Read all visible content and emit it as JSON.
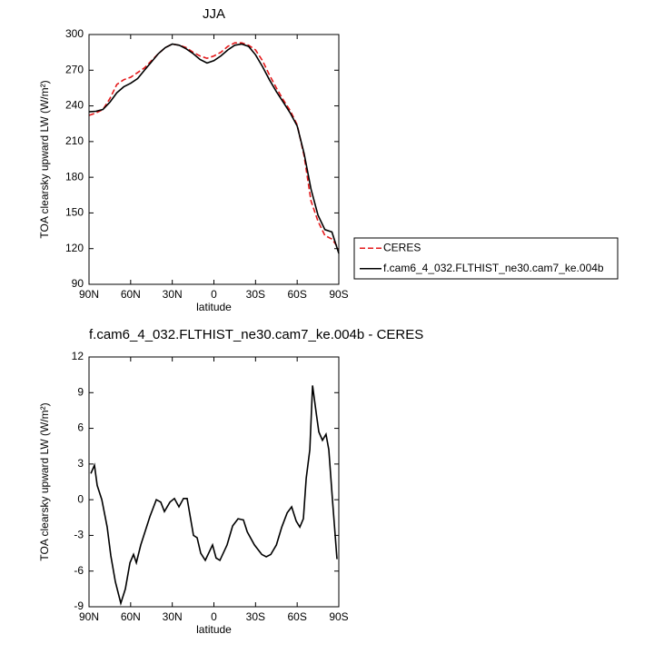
{
  "chart_data": [
    {
      "type": "line",
      "title": "JJA",
      "xlabel": "latitude",
      "ylabel": "TOA clearsky upward LW (W/m²)",
      "x": [
        90,
        85,
        80,
        75,
        70,
        65,
        60,
        55,
        50,
        45,
        40,
        35,
        30,
        25,
        20,
        15,
        10,
        5,
        0,
        -5,
        -10,
        -15,
        -20,
        -25,
        -30,
        -35,
        -40,
        -45,
        -50,
        -55,
        -60,
        -65,
        -70,
        -75,
        -80,
        -85,
        -90
      ],
      "series": [
        {
          "name": "CERES",
          "color": "#e41a1c",
          "dash": true,
          "values": [
            232,
            234,
            237,
            246,
            258,
            262,
            264,
            268,
            272,
            278,
            284,
            289,
            292,
            291,
            289,
            285,
            282,
            280,
            282,
            285,
            290,
            293,
            293,
            291,
            287,
            278,
            266,
            255,
            245,
            236,
            224,
            198,
            160,
            143,
            131,
            128,
            120
          ]
        },
        {
          "name": "f.cam6_4_032.FLTHIST_ne30.cam7_ke.004b",
          "color": "#000000",
          "dash": false,
          "values": [
            235,
            235.5,
            237,
            243,
            251,
            256,
            259,
            263,
            270,
            277,
            284,
            289,
            292,
            291,
            288,
            284,
            279,
            276,
            278,
            282,
            287,
            291,
            292,
            290,
            283,
            273,
            262,
            252,
            243,
            234,
            223,
            200,
            170,
            148,
            136,
            134,
            116
          ]
        }
      ],
      "xlim": [
        90,
        -90
      ],
      "xticks": [
        {
          "value": 90,
          "label": "90N"
        },
        {
          "value": 60,
          "label": "60N"
        },
        {
          "value": 30,
          "label": "30N"
        },
        0,
        {
          "value": -30,
          "label": "30S"
        },
        {
          "value": -60,
          "label": "60S"
        },
        {
          "value": -90,
          "label": "90S"
        }
      ],
      "ylim": [
        90,
        300
      ],
      "yticks": [
        90,
        120,
        150,
        180,
        210,
        240,
        270,
        300
      ],
      "legend": true
    },
    {
      "type": "line",
      "title": "f.cam6_4_032.FLTHIST_ne30.cam7_ke.004b - CERES",
      "xlabel": "latitude",
      "ylabel": "TOA clearsky upward LW (W/m²)",
      "x": [
        88.7,
        86.1,
        84.1,
        80.8,
        76.9,
        74.3,
        71.0,
        67.1,
        63.8,
        60.5,
        57.9,
        55.9,
        52.7,
        46.1,
        41.5,
        38.3,
        35.7,
        31.7,
        28.5,
        25.2,
        21.9,
        19.3,
        14.7,
        12.1,
        9.5,
        6.2,
        1.0,
        -1.6,
        -4.3,
        -9.5,
        -13.5,
        -17.4,
        -21.3,
        -24.0,
        -29.2,
        -34.5,
        -37.7,
        -41.0,
        -45.0,
        -48.9,
        -52.8,
        -56.0,
        -59.3,
        -61.9,
        -64.5,
        -66.5,
        -69.1,
        -71.1,
        -73.7,
        -75.6,
        -78.2,
        -80.8,
        -82.8,
        -85.4,
        -88.7
      ],
      "series": [
        {
          "color": "#000000",
          "dash": false,
          "values": [
            2.2,
            2.9,
            1.2,
            0,
            -2.3,
            -4.7,
            -6.9,
            -8.7,
            -7.5,
            -5.3,
            -4.6,
            -5.3,
            -3.8,
            -1.4,
            0,
            -0.2,
            -1,
            -0.2,
            0.1,
            -0.6,
            0.1,
            0.1,
            -3,
            -3.2,
            -4.5,
            -5.1,
            -3.8,
            -4.9,
            -5.1,
            -3.8,
            -2.2,
            -1.6,
            -1.7,
            -2.7,
            -3.8,
            -4.6,
            -4.8,
            -4.6,
            -3.8,
            -2.3,
            -1.1,
            -0.6,
            -1.8,
            -2.3,
            -1.6,
            1.8,
            4.2,
            9.6,
            7.3,
            5.7,
            5,
            5.5,
            4.2,
            0,
            -5
          ]
        }
      ],
      "xlim": [
        90,
        -90
      ],
      "xticks": [
        {
          "value": 90,
          "label": "90N"
        },
        {
          "value": 60,
          "label": "60N"
        },
        {
          "value": 30,
          "label": "30N"
        },
        0,
        {
          "value": -30,
          "label": "30S"
        },
        {
          "value": -60,
          "label": "60S"
        },
        {
          "value": -90,
          "label": "90S"
        }
      ],
      "ylim": [
        -9,
        12
      ],
      "yticks": [
        -9,
        -6,
        -3,
        0,
        3,
        6,
        9,
        12
      ]
    }
  ]
}
